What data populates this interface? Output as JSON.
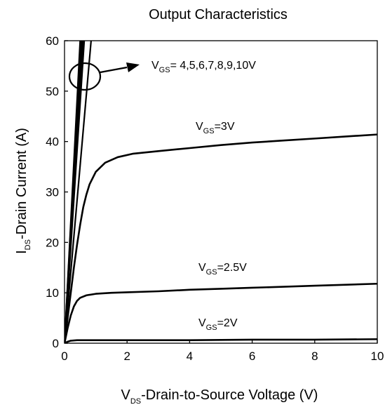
{
  "chart_data": {
    "type": "line",
    "title": "Output Characteristics",
    "xlabel": {
      "main": "V",
      "sub": "DS",
      "rest": "-Drain-to-Source Voltage (V)"
    },
    "ylabel": {
      "main": "I",
      "sub": "DS",
      "rest": "-Drain Current (A)"
    },
    "xlim": [
      0,
      10
    ],
    "ylim": [
      0,
      60
    ],
    "xticks": [
      "0",
      "2",
      "4",
      "6",
      "8",
      "10"
    ],
    "yticks": [
      "0",
      "10",
      "20",
      "30",
      "40",
      "50",
      "60"
    ],
    "grid": false,
    "series": [
      {
        "name": {
          "main": "V",
          "sub": "GS",
          "rest": "=4,5,6,7,8,9,10V"
        },
        "x": [
          0,
          0.5
        ],
        "y": [
          0,
          60
        ]
      },
      {
        "name": {
          "main": "V",
          "sub": "GS",
          "rest": "=4,5,6,7,8,9,10V"
        },
        "x": [
          0,
          0.52
        ],
        "y": [
          0,
          60
        ]
      },
      {
        "name": {
          "main": "V",
          "sub": "GS",
          "rest": "=4,5,6,7,8,9,10V"
        },
        "x": [
          0,
          0.55
        ],
        "y": [
          0,
          60
        ]
      },
      {
        "name": {
          "main": "V",
          "sub": "GS",
          "rest": "=4,5,6,7,8,9,10V"
        },
        "x": [
          0,
          0.57
        ],
        "y": [
          0,
          60
        ]
      },
      {
        "name": {
          "main": "V",
          "sub": "GS",
          "rest": "=4,5,6,7,8,9,10V"
        },
        "x": [
          0,
          0.6
        ],
        "y": [
          0,
          60
        ]
      },
      {
        "name": {
          "main": "V",
          "sub": "GS",
          "rest": "=4,5,6,7,8,9,10V"
        },
        "x": [
          0,
          0.63
        ],
        "y": [
          0,
          60
        ]
      },
      {
        "name": {
          "main": "V",
          "sub": "GS",
          "rest": "=4,5,6,7,8,9,10V"
        },
        "x": [
          0,
          0.85
        ],
        "y": [
          0,
          60
        ]
      },
      {
        "name": {
          "main": "V",
          "sub": "GS",
          "rest": "=3V"
        },
        "x": [
          0,
          0.1,
          0.2,
          0.3,
          0.4,
          0.5,
          0.6,
          0.7,
          0.8,
          1.0,
          1.3,
          1.7,
          2.2,
          3,
          4,
          5,
          6,
          7,
          8,
          9,
          10
        ],
        "y": [
          0,
          5,
          10,
          15,
          19.5,
          23.5,
          27,
          29.5,
          31.5,
          34,
          35.8,
          36.9,
          37.6,
          38.1,
          38.7,
          39.3,
          39.8,
          40.2,
          40.6,
          41,
          41.4
        ]
      },
      {
        "name": {
          "main": "V",
          "sub": "GS",
          "rest": "=2.5V"
        },
        "x": [
          0,
          0.1,
          0.2,
          0.3,
          0.4,
          0.5,
          0.7,
          1.0,
          1.5,
          2,
          3,
          4,
          5,
          6,
          7,
          8,
          9,
          10
        ],
        "y": [
          0,
          3,
          5.5,
          7.3,
          8.4,
          9,
          9.5,
          9.8,
          10,
          10.1,
          10.3,
          10.6,
          10.8,
          11,
          11.2,
          11.4,
          11.6,
          11.8
        ]
      },
      {
        "name": {
          "main": "V",
          "sub": "GS",
          "rest": "=2V"
        },
        "x": [
          0,
          0.1,
          0.2,
          0.4,
          1,
          2,
          4,
          6,
          8,
          10
        ],
        "y": [
          0,
          0.3,
          0.5,
          0.6,
          0.6,
          0.6,
          0.6,
          0.7,
          0.7,
          0.8
        ]
      }
    ],
    "annotations": [
      {
        "main": "V",
        "sub": "GS",
        "rest": "= 4,5,6,7,8,9,10V"
      },
      {
        "main": "V",
        "sub": "GS",
        "rest": "=3V"
      },
      {
        "main": "V",
        "sub": "GS",
        "rest": "=2.5V"
      },
      {
        "main": "V",
        "sub": "GS",
        "rest": "=2V"
      }
    ]
  }
}
